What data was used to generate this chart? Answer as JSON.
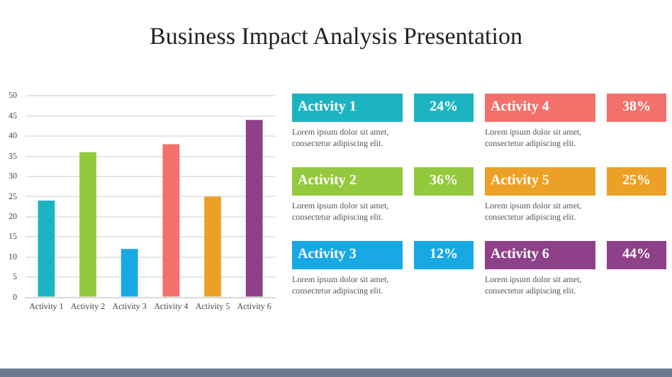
{
  "chart_data": [
    {
      "type": "bar",
      "title": "Business Impact Analysis Presentation",
      "categories": [
        "Activity 1",
        "Activity 2",
        "Activity 3",
        "Activity 4",
        "Activity 5",
        "Activity 6"
      ],
      "values": [
        24,
        36,
        12,
        38,
        25,
        44
      ],
      "colors": [
        "#1db4c2",
        "#94c83d",
        "#18a9e4",
        "#f4706b",
        "#eca126",
        "#8e4088"
      ],
      "ylim": [
        0,
        50
      ],
      "yticks": [
        0,
        5,
        10,
        15,
        20,
        25,
        30,
        35,
        40,
        45,
        50
      ],
      "grid": "y"
    },
    {
      "type": "other",
      "categories": [
        "Activity 1",
        "Activity 2",
        "Activity 3",
        "Activity 4",
        "Activity 5",
        "Activity 6"
      ],
      "value_labels": [
        "24%",
        "36%",
        "12%",
        "38%",
        "25%",
        "44%"
      ],
      "colors": [
        "#1db4c2",
        "#94c83d",
        "#18a9e4",
        "#f4706b",
        "#eca126",
        "#8e4088"
      ],
      "annotations": [
        "Lorem ipsum dolor sit amet, consectetur adipiscing elit.",
        "Lorem ipsum dolor sit amet, consectetur adipiscing elit.",
        "Lorem ipsum dolor sit amet, consectetur adipiscing elit.",
        "Lorem ipsum dolor sit amet, consectetur adipiscing elit.",
        "Lorem ipsum dolor sit amet, consectetur adipiscing elit.",
        "Lorem ipsum dolor sit amet, consectetur adipiscing elit."
      ]
    }
  ]
}
